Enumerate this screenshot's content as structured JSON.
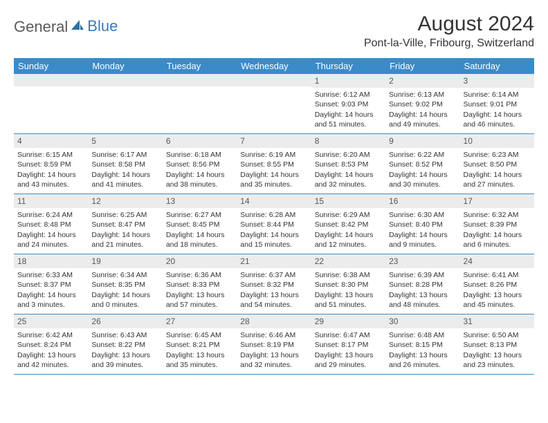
{
  "logo": {
    "word1": "General",
    "word2": "Blue"
  },
  "title": "August 2024",
  "location": "Pont-la-Ville, Fribourg, Switzerland",
  "colors": {
    "header_bg": "#3b8bc8",
    "header_text": "#ffffff",
    "daynum_bg": "#ececec",
    "body_text": "#333333",
    "rule": "#3b8bc8",
    "logo_gray": "#5a5a5a",
    "logo_blue": "#3a7ab8"
  },
  "dayNames": [
    "Sunday",
    "Monday",
    "Tuesday",
    "Wednesday",
    "Thursday",
    "Friday",
    "Saturday"
  ],
  "weeks": [
    [
      {
        "day": "",
        "sunrise": "",
        "sunset": "",
        "daylight": ""
      },
      {
        "day": "",
        "sunrise": "",
        "sunset": "",
        "daylight": ""
      },
      {
        "day": "",
        "sunrise": "",
        "sunset": "",
        "daylight": ""
      },
      {
        "day": "",
        "sunrise": "",
        "sunset": "",
        "daylight": ""
      },
      {
        "day": "1",
        "sunrise": "Sunrise: 6:12 AM",
        "sunset": "Sunset: 9:03 PM",
        "daylight": "Daylight: 14 hours and 51 minutes."
      },
      {
        "day": "2",
        "sunrise": "Sunrise: 6:13 AM",
        "sunset": "Sunset: 9:02 PM",
        "daylight": "Daylight: 14 hours and 49 minutes."
      },
      {
        "day": "3",
        "sunrise": "Sunrise: 6:14 AM",
        "sunset": "Sunset: 9:01 PM",
        "daylight": "Daylight: 14 hours and 46 minutes."
      }
    ],
    [
      {
        "day": "4",
        "sunrise": "Sunrise: 6:15 AM",
        "sunset": "Sunset: 8:59 PM",
        "daylight": "Daylight: 14 hours and 43 minutes."
      },
      {
        "day": "5",
        "sunrise": "Sunrise: 6:17 AM",
        "sunset": "Sunset: 8:58 PM",
        "daylight": "Daylight: 14 hours and 41 minutes."
      },
      {
        "day": "6",
        "sunrise": "Sunrise: 6:18 AM",
        "sunset": "Sunset: 8:56 PM",
        "daylight": "Daylight: 14 hours and 38 minutes."
      },
      {
        "day": "7",
        "sunrise": "Sunrise: 6:19 AM",
        "sunset": "Sunset: 8:55 PM",
        "daylight": "Daylight: 14 hours and 35 minutes."
      },
      {
        "day": "8",
        "sunrise": "Sunrise: 6:20 AM",
        "sunset": "Sunset: 8:53 PM",
        "daylight": "Daylight: 14 hours and 32 minutes."
      },
      {
        "day": "9",
        "sunrise": "Sunrise: 6:22 AM",
        "sunset": "Sunset: 8:52 PM",
        "daylight": "Daylight: 14 hours and 30 minutes."
      },
      {
        "day": "10",
        "sunrise": "Sunrise: 6:23 AM",
        "sunset": "Sunset: 8:50 PM",
        "daylight": "Daylight: 14 hours and 27 minutes."
      }
    ],
    [
      {
        "day": "11",
        "sunrise": "Sunrise: 6:24 AM",
        "sunset": "Sunset: 8:48 PM",
        "daylight": "Daylight: 14 hours and 24 minutes."
      },
      {
        "day": "12",
        "sunrise": "Sunrise: 6:25 AM",
        "sunset": "Sunset: 8:47 PM",
        "daylight": "Daylight: 14 hours and 21 minutes."
      },
      {
        "day": "13",
        "sunrise": "Sunrise: 6:27 AM",
        "sunset": "Sunset: 8:45 PM",
        "daylight": "Daylight: 14 hours and 18 minutes."
      },
      {
        "day": "14",
        "sunrise": "Sunrise: 6:28 AM",
        "sunset": "Sunset: 8:44 PM",
        "daylight": "Daylight: 14 hours and 15 minutes."
      },
      {
        "day": "15",
        "sunrise": "Sunrise: 6:29 AM",
        "sunset": "Sunset: 8:42 PM",
        "daylight": "Daylight: 14 hours and 12 minutes."
      },
      {
        "day": "16",
        "sunrise": "Sunrise: 6:30 AM",
        "sunset": "Sunset: 8:40 PM",
        "daylight": "Daylight: 14 hours and 9 minutes."
      },
      {
        "day": "17",
        "sunrise": "Sunrise: 6:32 AM",
        "sunset": "Sunset: 8:39 PM",
        "daylight": "Daylight: 14 hours and 6 minutes."
      }
    ],
    [
      {
        "day": "18",
        "sunrise": "Sunrise: 6:33 AM",
        "sunset": "Sunset: 8:37 PM",
        "daylight": "Daylight: 14 hours and 3 minutes."
      },
      {
        "day": "19",
        "sunrise": "Sunrise: 6:34 AM",
        "sunset": "Sunset: 8:35 PM",
        "daylight": "Daylight: 14 hours and 0 minutes."
      },
      {
        "day": "20",
        "sunrise": "Sunrise: 6:36 AM",
        "sunset": "Sunset: 8:33 PM",
        "daylight": "Daylight: 13 hours and 57 minutes."
      },
      {
        "day": "21",
        "sunrise": "Sunrise: 6:37 AM",
        "sunset": "Sunset: 8:32 PM",
        "daylight": "Daylight: 13 hours and 54 minutes."
      },
      {
        "day": "22",
        "sunrise": "Sunrise: 6:38 AM",
        "sunset": "Sunset: 8:30 PM",
        "daylight": "Daylight: 13 hours and 51 minutes."
      },
      {
        "day": "23",
        "sunrise": "Sunrise: 6:39 AM",
        "sunset": "Sunset: 8:28 PM",
        "daylight": "Daylight: 13 hours and 48 minutes."
      },
      {
        "day": "24",
        "sunrise": "Sunrise: 6:41 AM",
        "sunset": "Sunset: 8:26 PM",
        "daylight": "Daylight: 13 hours and 45 minutes."
      }
    ],
    [
      {
        "day": "25",
        "sunrise": "Sunrise: 6:42 AM",
        "sunset": "Sunset: 8:24 PM",
        "daylight": "Daylight: 13 hours and 42 minutes."
      },
      {
        "day": "26",
        "sunrise": "Sunrise: 6:43 AM",
        "sunset": "Sunset: 8:22 PM",
        "daylight": "Daylight: 13 hours and 39 minutes."
      },
      {
        "day": "27",
        "sunrise": "Sunrise: 6:45 AM",
        "sunset": "Sunset: 8:21 PM",
        "daylight": "Daylight: 13 hours and 35 minutes."
      },
      {
        "day": "28",
        "sunrise": "Sunrise: 6:46 AM",
        "sunset": "Sunset: 8:19 PM",
        "daylight": "Daylight: 13 hours and 32 minutes."
      },
      {
        "day": "29",
        "sunrise": "Sunrise: 6:47 AM",
        "sunset": "Sunset: 8:17 PM",
        "daylight": "Daylight: 13 hours and 29 minutes."
      },
      {
        "day": "30",
        "sunrise": "Sunrise: 6:48 AM",
        "sunset": "Sunset: 8:15 PM",
        "daylight": "Daylight: 13 hours and 26 minutes."
      },
      {
        "day": "31",
        "sunrise": "Sunrise: 6:50 AM",
        "sunset": "Sunset: 8:13 PM",
        "daylight": "Daylight: 13 hours and 23 minutes."
      }
    ]
  ]
}
